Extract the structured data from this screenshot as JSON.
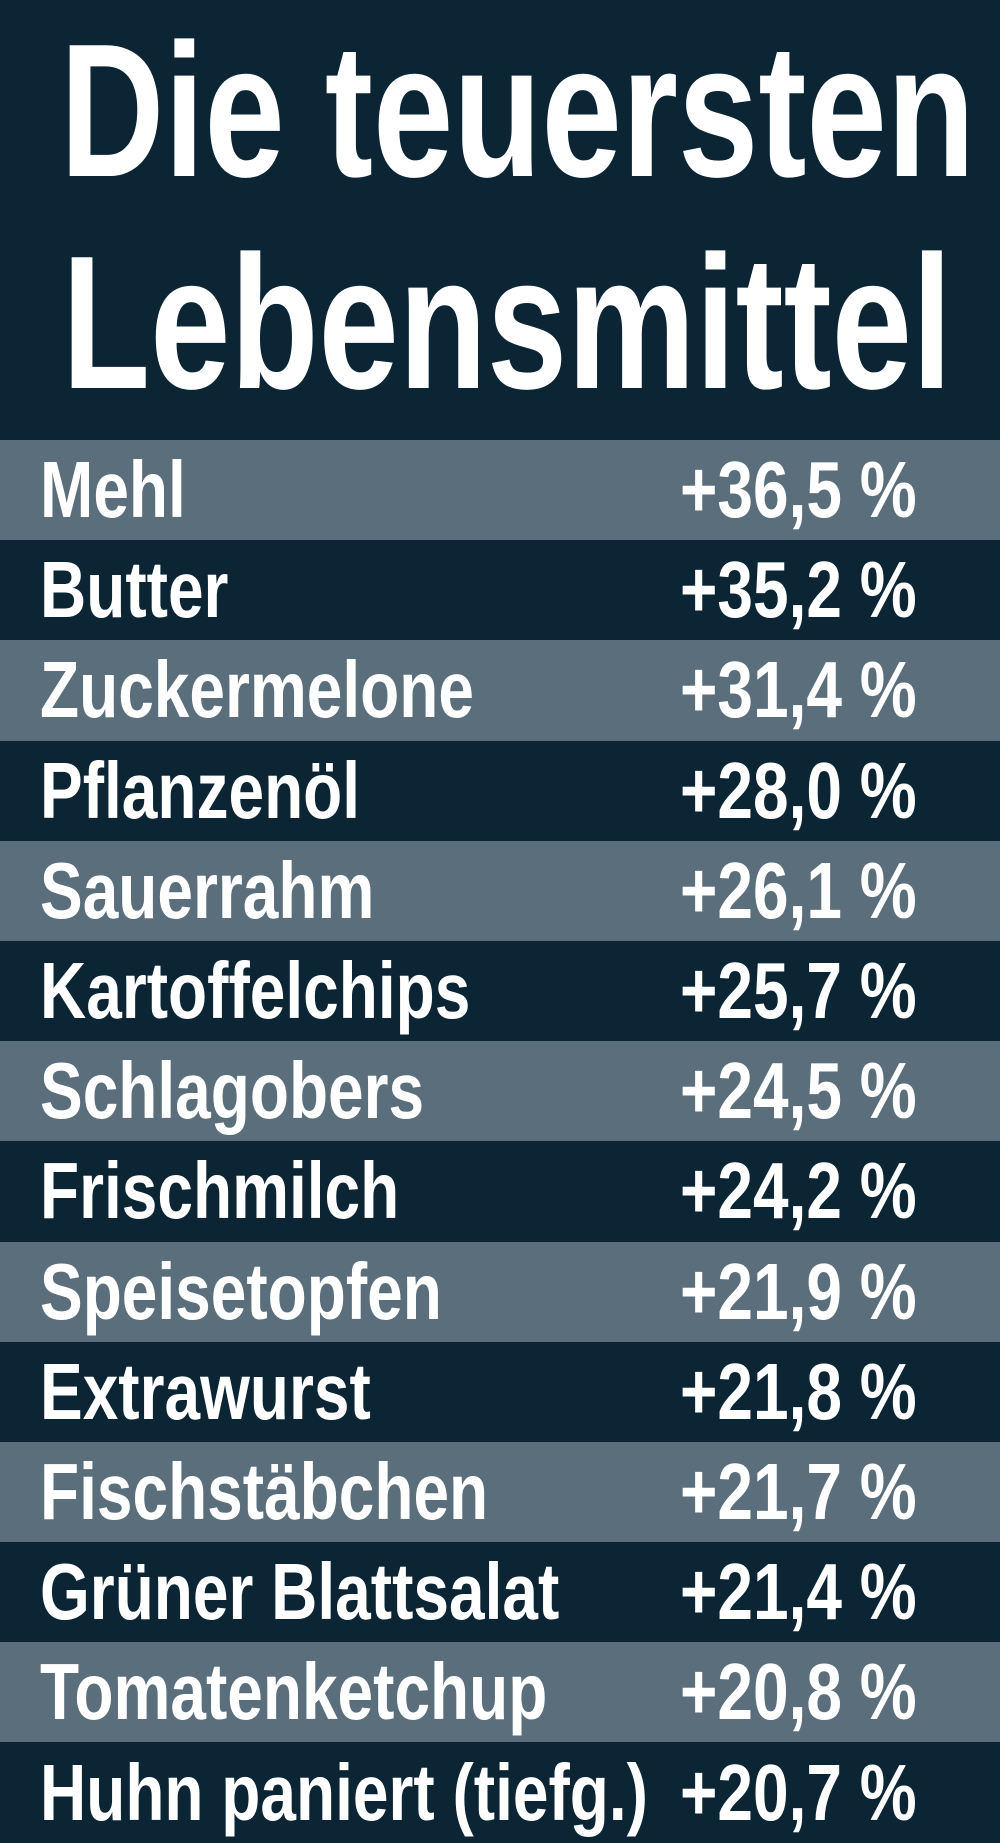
{
  "header": {
    "title_lines": [
      "Die teuersten",
      "Lebensmittel"
    ]
  },
  "table": {
    "rows": [
      [
        "Mehl",
        "+36,5 %"
      ],
      [
        "Butter",
        "+35,2 %"
      ],
      [
        "Zuckermelone",
        "+31,4 %"
      ],
      [
        "Pflanzenöl",
        "+28,0 %"
      ],
      [
        "Sauerrahm",
        "+26,1 %"
      ],
      [
        "Kartoffelchips",
        "+25,7 %"
      ],
      [
        "Schlagobers",
        "+24,5 %"
      ],
      [
        "Frischmilch",
        "+24,2 %"
      ],
      [
        "Speisetopfen",
        "+21,9 %"
      ],
      [
        "Extrawurst",
        "+21,8 %"
      ],
      [
        "Fischstäbchen",
        "+21,7 %"
      ],
      [
        "Grüner Blattsalat",
        "+21,4 %"
      ],
      [
        "Tomatenketchup",
        "+20,8 %"
      ],
      [
        "Huhn paniert (tiefg.)",
        "+20,7 %"
      ]
    ]
  }
}
